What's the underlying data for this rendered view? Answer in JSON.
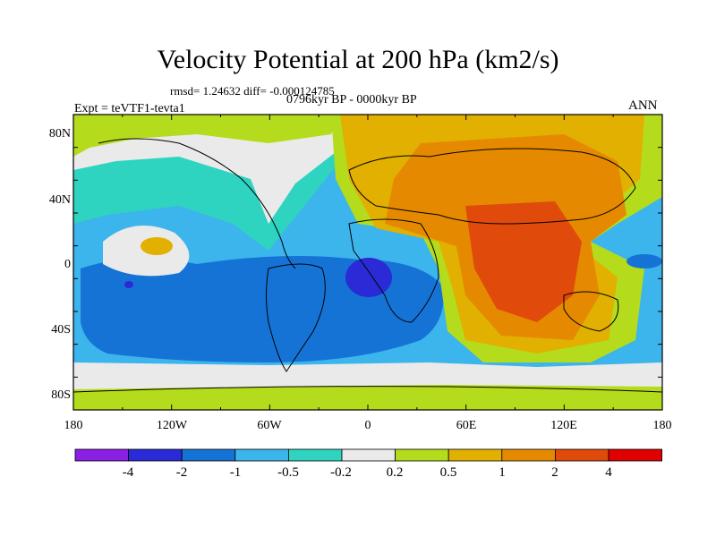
{
  "map": {
    "title": "Velocity Potential at 200 hPa (km2/s)",
    "stats": "rmsd= 1.24632 diff= -0.000124785",
    "left_label": "Expt = teVTF1-tevta1",
    "center_label": "0796kyr BP - 0000kyr BP",
    "right_label": "ANN",
    "lat_labels": [
      "80N",
      "40N",
      "0",
      "40S",
      "80S"
    ],
    "lon_labels": [
      "180",
      "120W",
      "60W",
      "0",
      "60E",
      "120E",
      "180"
    ]
  },
  "colorbar": {
    "labels": [
      "-4",
      "-2",
      "-1",
      "-0.5",
      "-0.2",
      "0.2",
      "0.5",
      "1",
      "2",
      "4"
    ],
    "colors": [
      "#8a1fe6",
      "#2a2ad6",
      "#1673d6",
      "#3cb4ec",
      "#2ed4c0",
      "#eaeaea",
      "#b4dc1c",
      "#e2b000",
      "#e58a00",
      "#e04a0a",
      "#e00000"
    ]
  }
}
